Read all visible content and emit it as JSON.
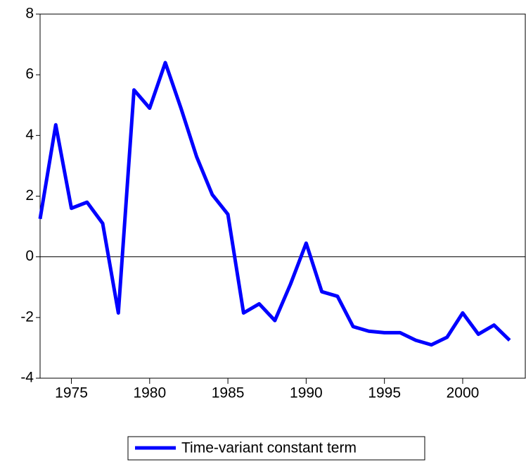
{
  "chart_data": {
    "type": "line",
    "x": [
      1973,
      1974,
      1975,
      1976,
      1977,
      1978,
      1979,
      1980,
      1981,
      1982,
      1983,
      1984,
      1985,
      1986,
      1987,
      1988,
      1989,
      1990,
      1991,
      1992,
      1993,
      1994,
      1995,
      1996,
      1997,
      1998,
      1999,
      2000,
      2001,
      2002,
      2003
    ],
    "series": [
      {
        "name": "Time-variant constant term",
        "color": "#0000ff",
        "values": [
          1.25,
          4.35,
          1.6,
          1.8,
          1.1,
          -1.85,
          5.5,
          4.9,
          6.4,
          4.9,
          3.3,
          2.05,
          1.4,
          -1.85,
          -1.55,
          -2.1,
          -0.9,
          0.45,
          -1.15,
          -1.3,
          -2.3,
          -2.45,
          -2.5,
          -2.5,
          -2.75,
          -2.9,
          -2.65,
          -1.85,
          -2.55,
          -2.25,
          -2.75
        ]
      }
    ],
    "xlim": [
      1973,
      2004
    ],
    "xticks": [
      1975,
      1980,
      1985,
      1990,
      1995,
      2000
    ],
    "ylim": [
      -4,
      8
    ],
    "yticks": [
      -4,
      -2,
      0,
      2,
      4,
      6,
      8
    ],
    "legend": "bottom"
  }
}
